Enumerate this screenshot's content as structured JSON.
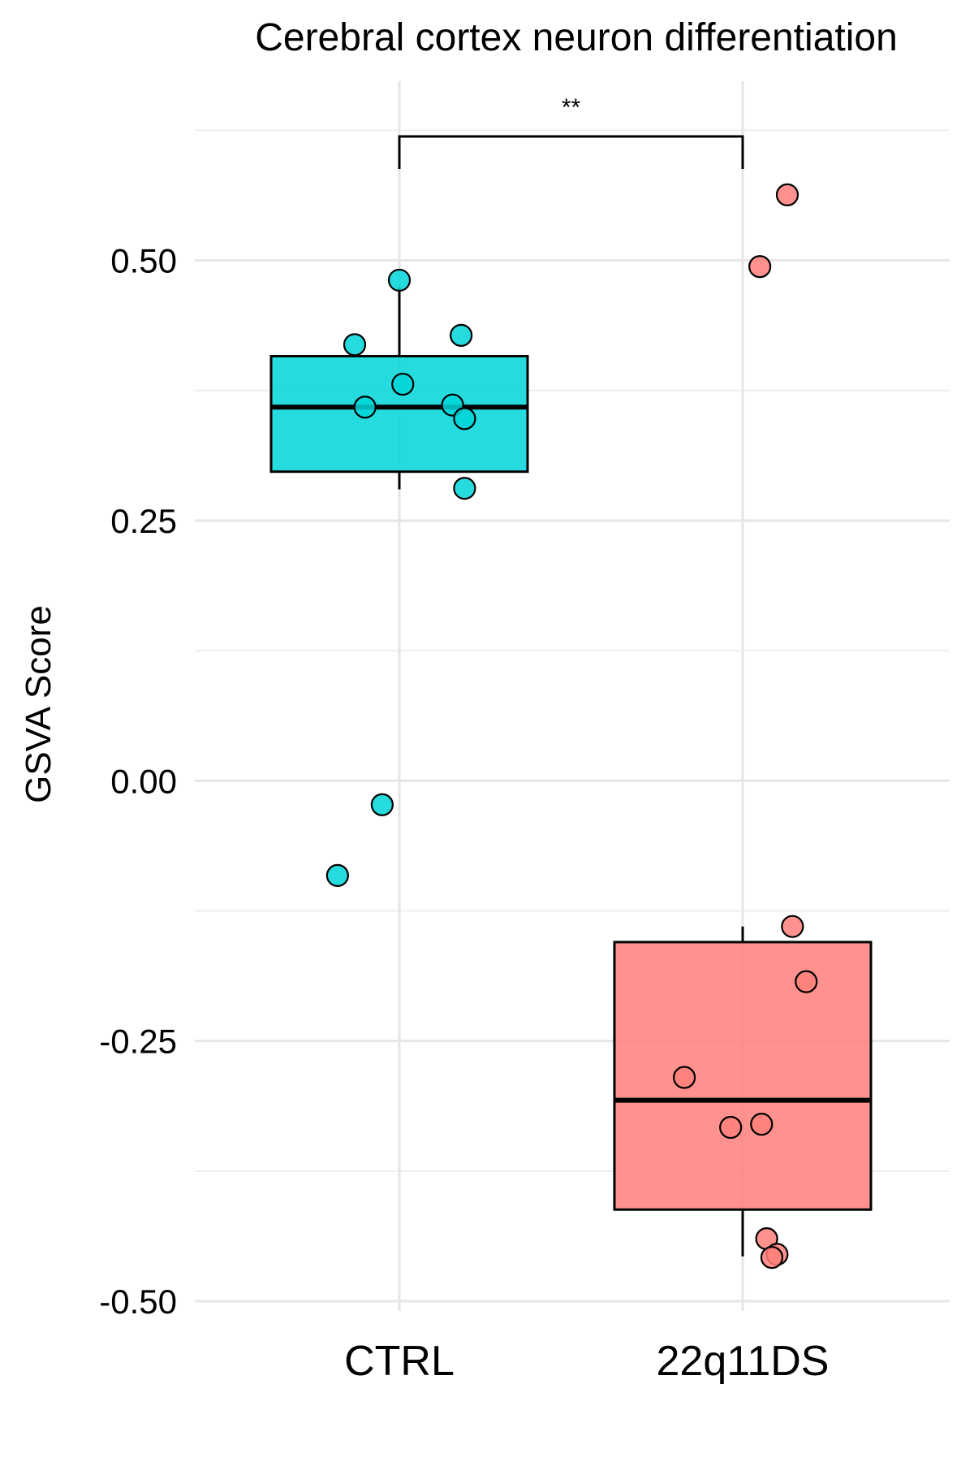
{
  "chart_data": {
    "type": "box",
    "title": "Cerebral cortex neuron differentiation",
    "xlabel": "",
    "ylabel": "GSVA Score",
    "categories": [
      "CTRL",
      "22q11DS"
    ],
    "ylim": [
      -0.5,
      0.63
    ],
    "yticks": [
      -0.5,
      -0.25,
      0.0,
      0.25,
      0.5
    ],
    "ytick_labels": [
      "-0.50",
      "-0.25",
      "0.00",
      "0.25",
      "0.50"
    ],
    "grid": true,
    "legend": "none",
    "groups": [
      {
        "category": "CTRL",
        "color": "#00D5D8",
        "box": {
          "whisker_low": 0.28,
          "q1": 0.297,
          "median": 0.359,
          "q3": 0.408,
          "whisker_high": 0.474
        },
        "points": [
          {
            "jitter": 0.0,
            "y": 0.481
          },
          {
            "jitter": -0.13,
            "y": 0.419
          },
          {
            "jitter": 0.18,
            "y": 0.428
          },
          {
            "jitter": 0.01,
            "y": 0.381
          },
          {
            "jitter": -0.1,
            "y": 0.359
          },
          {
            "jitter": 0.155,
            "y": 0.361
          },
          {
            "jitter": 0.19,
            "y": 0.348
          },
          {
            "jitter": 0.19,
            "y": 0.281
          },
          {
            "jitter": -0.05,
            "y": -0.023
          },
          {
            "jitter": -0.18,
            "y": -0.091
          }
        ]
      },
      {
        "category": "22q11DS",
        "color": "#FF7F7A",
        "box": {
          "whisker_low": -0.457,
          "q1": -0.412,
          "median": -0.307,
          "q3": -0.155,
          "whisker_high": -0.14
        },
        "points": [
          {
            "jitter": 0.13,
            "y": 0.563
          },
          {
            "jitter": 0.05,
            "y": 0.494
          },
          {
            "jitter": 0.145,
            "y": -0.14
          },
          {
            "jitter": 0.185,
            "y": -0.193
          },
          {
            "jitter": -0.17,
            "y": -0.285
          },
          {
            "jitter": -0.035,
            "y": -0.333
          },
          {
            "jitter": 0.055,
            "y": -0.33
          },
          {
            "jitter": 0.07,
            "y": -0.44
          },
          {
            "jitter": 0.1,
            "y": -0.455
          },
          {
            "jitter": 0.085,
            "y": -0.458
          }
        ]
      }
    ],
    "annotation": {
      "label": "**",
      "between": [
        "CTRL",
        "22q11DS"
      ]
    }
  }
}
